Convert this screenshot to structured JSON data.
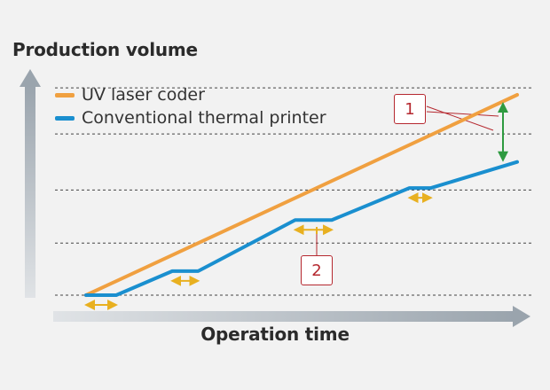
{
  "chart_data": {
    "type": "line",
    "ylabel": "Production volume",
    "xlabel": "Operation time",
    "grid": true,
    "legend_placement": "top-left",
    "series": [
      {
        "name": "UV laser coder",
        "color": "#f0a040",
        "x": [
          0,
          10
        ],
        "y": [
          0,
          10
        ]
      },
      {
        "name": "Conventional thermal printer",
        "color": "#1a8fcf",
        "x": [
          0,
          0.7,
          2.0,
          2.6,
          4.85,
          5.7,
          7.5,
          8.0,
          10
        ],
        "y": [
          0,
          0,
          1.2,
          1.2,
          3.75,
          3.75,
          5.35,
          5.35,
          6.65
        ]
      }
    ],
    "annotations": [
      {
        "label": "1",
        "meaning": "gap between the two lines at the end"
      },
      {
        "label": "2",
        "meaning": "flat segment of the thermal printer line"
      }
    ],
    "colors": {
      "axis_arrow": "#9aa4ad",
      "gridline": "#444444",
      "pause_arrow": "#e8b020",
      "gap_arrow": "#2e9a40",
      "callout_border": "#b5282f"
    }
  }
}
